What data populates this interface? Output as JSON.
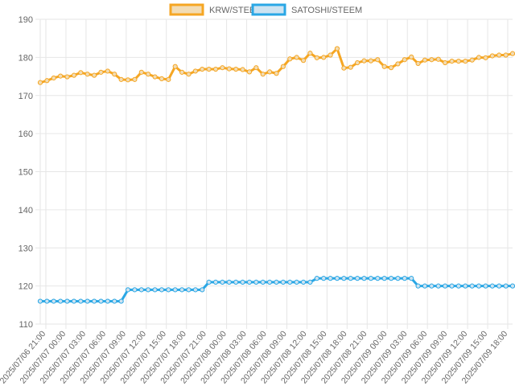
{
  "chart_data": {
    "type": "line",
    "legend_position": "top",
    "grid": true,
    "ylim": [
      110,
      190
    ],
    "y_ticks": [
      "190",
      "180",
      "170",
      "160",
      "150",
      "140",
      "130",
      "120",
      "110"
    ],
    "x_tick_labels": [
      "2025/07/06 21:00",
      "2025/07/07 00:00",
      "2025/07/07 03:00",
      "2025/07/07 06:00",
      "2025/07/07 09:00",
      "2025/07/07 12:00",
      "2025/07/07 15:00",
      "2025/07/07 18:00",
      "2025/07/07 21:00",
      "2025/07/08 00:00",
      "2025/07/08 03:00",
      "2025/07/08 06:00",
      "2025/07/08 09:00",
      "2025/07/08 12:00",
      "2025/07/08 15:00",
      "2025/07/08 18:00",
      "2025/07/08 21:00",
      "2025/07/09 00:00",
      "2025/07/09 03:00",
      "2025/07/09 06:00",
      "2025/07/09 09:00",
      "2025/07/09 12:00",
      "2025/07/09 15:00",
      "2025/07/09 18:00"
    ],
    "series": [
      {
        "name": "KRW/STEEM",
        "color": "#f5a623",
        "fill": "#f2dcb4",
        "values": [
          173.4,
          173.9,
          174.6,
          175.1,
          174.9,
          175.3,
          176.0,
          175.6,
          175.3,
          176.1,
          176.4,
          175.6,
          174.2,
          174.1,
          174.2,
          176.1,
          175.6,
          174.9,
          174.4,
          174.2,
          177.6,
          176.1,
          175.6,
          176.4,
          176.9,
          176.9,
          176.9,
          177.3,
          177.0,
          176.9,
          176.8,
          176.2,
          177.3,
          175.6,
          176.2,
          175.8,
          177.6,
          179.6,
          180.0,
          179.2,
          181.1,
          179.9,
          180.0,
          180.6,
          182.3,
          177.2,
          177.4,
          178.6,
          179.1,
          179.1,
          179.4,
          177.6,
          177.3,
          178.3,
          179.4,
          180.1,
          178.4,
          179.3,
          179.4,
          179.5,
          178.6,
          179.0,
          179.0,
          179.0,
          179.3,
          180.0,
          179.9,
          180.4,
          180.6,
          180.6,
          181.0
        ]
      },
      {
        "name": "SATOSHI/STEEM",
        "color": "#2aa7e5",
        "fill": "#cde3f1",
        "values": [
          116,
          116,
          116,
          116,
          116,
          116,
          116,
          116,
          116,
          116,
          116,
          116,
          116,
          119,
          119,
          119,
          119,
          119,
          119,
          119,
          119,
          119,
          119,
          119,
          119,
          121,
          121,
          121,
          121,
          121,
          121,
          121,
          121,
          121,
          121,
          121,
          121,
          121,
          121,
          121,
          121,
          122,
          122,
          122,
          122,
          122,
          122,
          122,
          122,
          122,
          122,
          122,
          122,
          122,
          122,
          122,
          120,
          120,
          120,
          120,
          120,
          120,
          120,
          120,
          120,
          120,
          120,
          120,
          120,
          120,
          120
        ]
      }
    ]
  }
}
